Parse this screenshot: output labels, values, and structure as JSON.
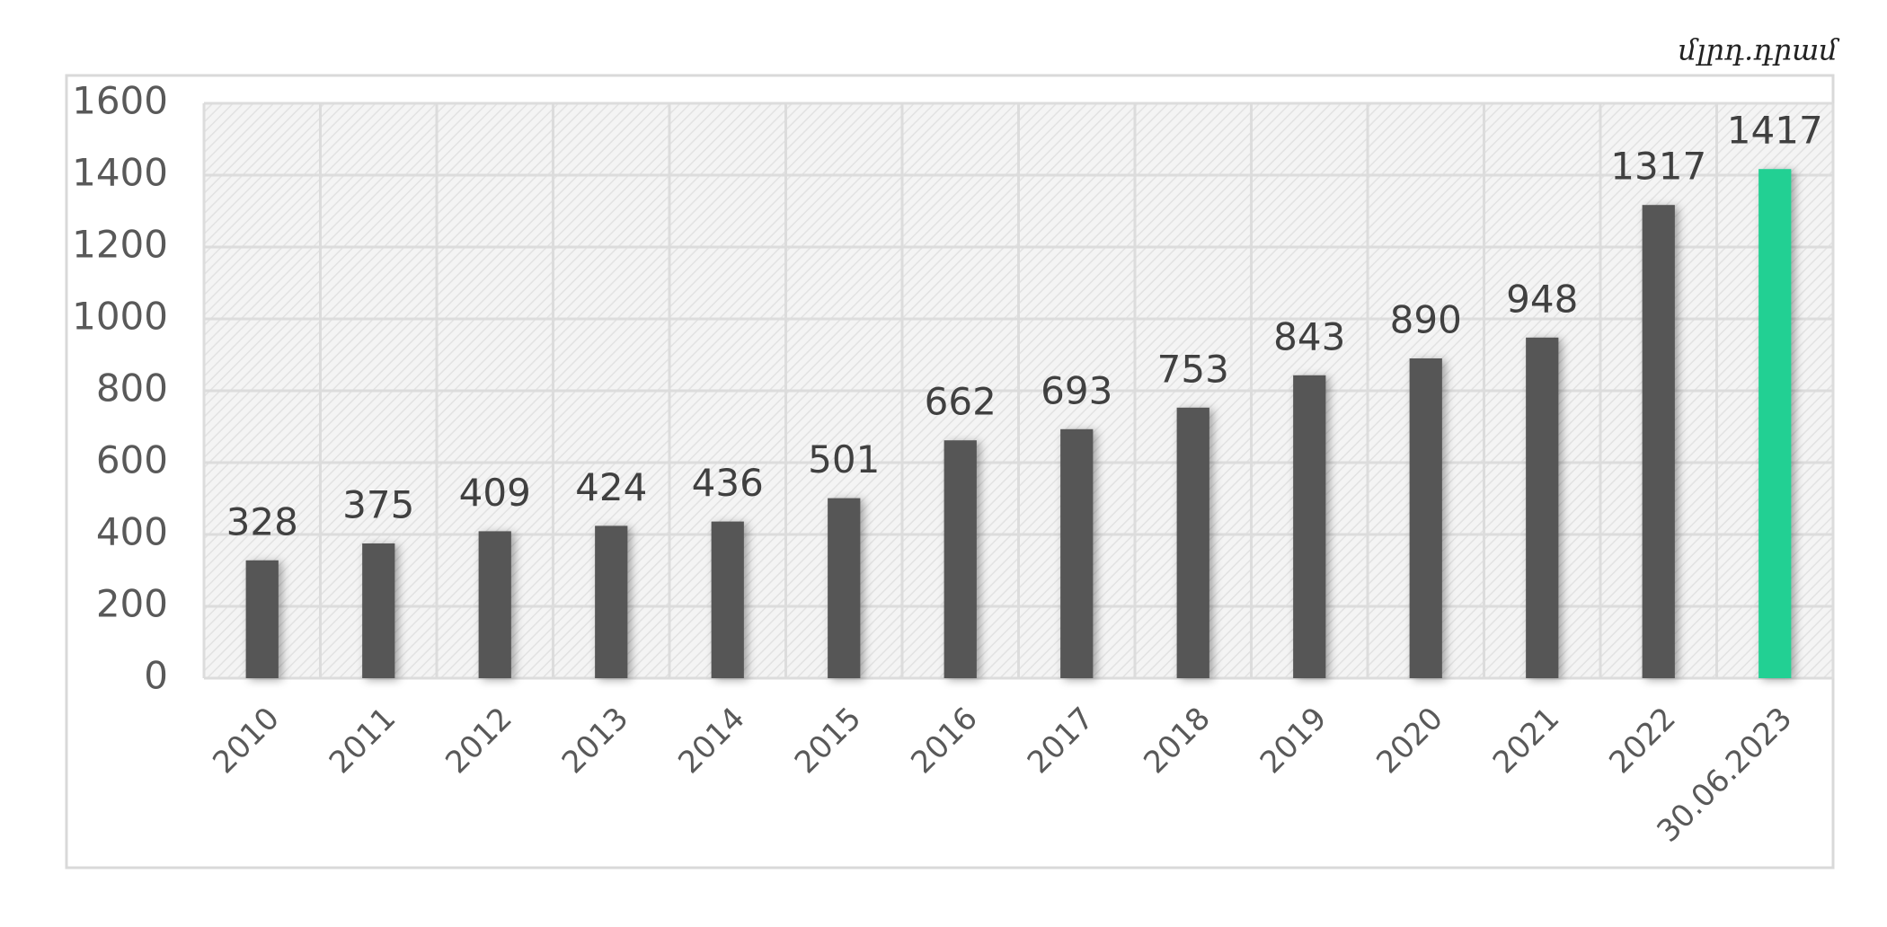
{
  "chart_data": {
    "type": "bar",
    "unit": "մլրդ.դրամ",
    "categories": [
      "2010",
      "2011",
      "2012",
      "2013",
      "2014",
      "2015",
      "2016",
      "2017",
      "2018",
      "2019",
      "2020",
      "2021",
      "2022",
      "30.06.2023"
    ],
    "values": [
      328,
      375,
      409,
      424,
      436,
      501,
      662,
      693,
      753,
      843,
      890,
      948,
      1317,
      1417
    ],
    "colors": [
      "#565656",
      "#565656",
      "#565656",
      "#565656",
      "#565656",
      "#565656",
      "#565656",
      "#565656",
      "#565656",
      "#565656",
      "#565656",
      "#565656",
      "#565656",
      "#20d093"
    ],
    "ylim": [
      0,
      1600
    ],
    "yticks": [
      0,
      200,
      400,
      600,
      800,
      1000,
      1200,
      1400,
      1600
    ],
    "grid": true
  }
}
